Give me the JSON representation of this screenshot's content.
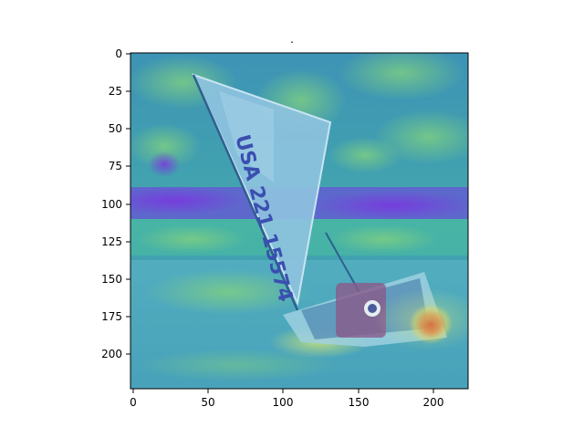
{
  "figure": {
    "title": ".",
    "image_description": "A sailboat with a large light sail marked 'USA 221 15574' tipping on choppy water, with a blue-green-purple-red heatmap overlay; a hot red spot near the stern at the right.",
    "sail_text": "USA 221 15574",
    "colormap": [
      "#3b2bd1",
      "#3a7bd6",
      "#2fb7c9",
      "#5fd3a0",
      "#d8e27a",
      "#f0b040",
      "#e23a2a"
    ]
  },
  "axes": {
    "x_ticks": [
      "0",
      "50",
      "100",
      "150",
      "200"
    ],
    "y_ticks": [
      "0",
      "25",
      "50",
      "75",
      "100",
      "125",
      "150",
      "175",
      "200"
    ]
  }
}
